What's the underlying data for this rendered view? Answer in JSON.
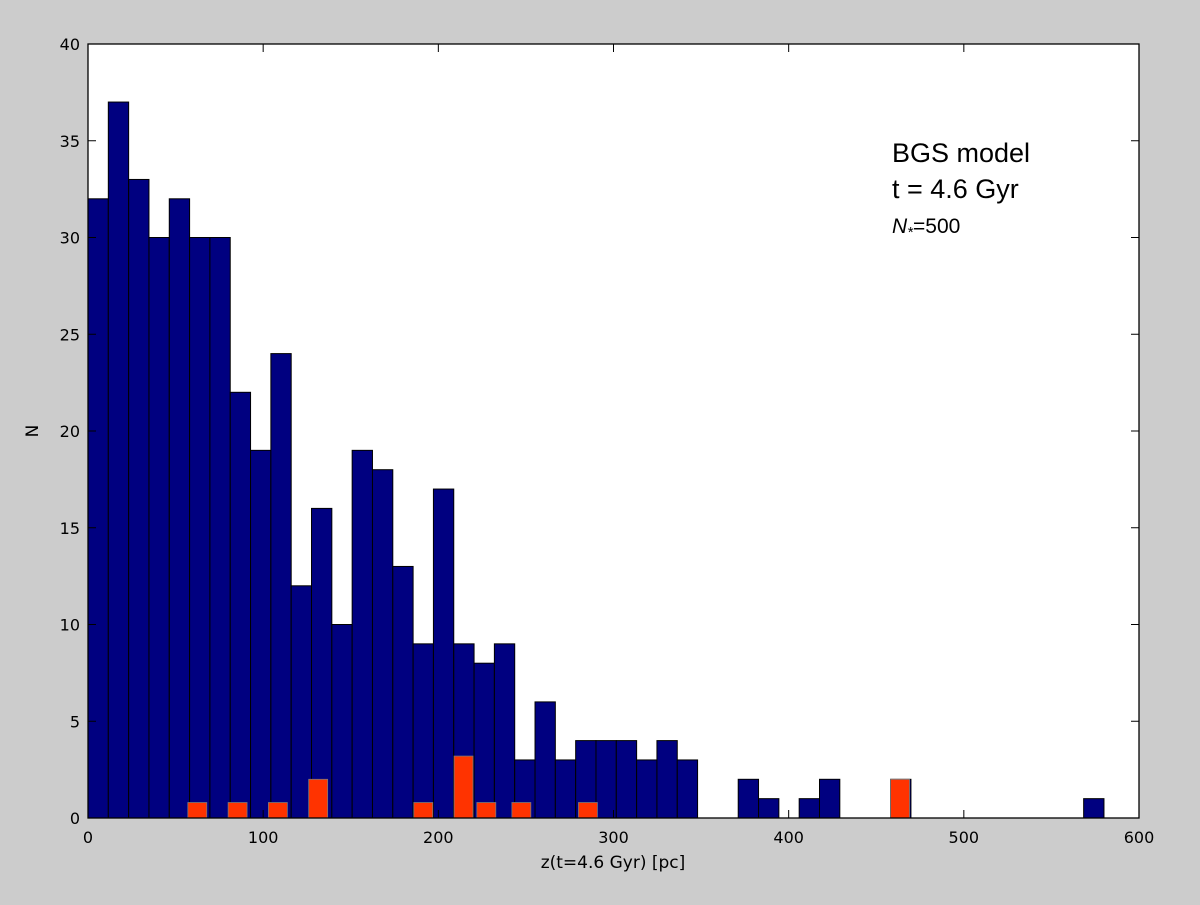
{
  "chart_data": {
    "type": "bar",
    "xlabel": "z(t=4.6 Gyr) [pc]",
    "ylabel": "N",
    "xlim": [
      0,
      600
    ],
    "ylim": [
      0,
      40
    ],
    "xticks": [
      "0",
      "100",
      "200",
      "300",
      "400",
      "500",
      "600"
    ],
    "yticks": [
      "0",
      "5",
      "10",
      "15",
      "20",
      "25",
      "30",
      "35",
      "40"
    ],
    "bin_width": 11.6,
    "grid": false,
    "annotations": {
      "line1": "BGS model",
      "line2": "t = 4.6 Gyr",
      "line3_symbol": "N",
      "line3_sub": "*",
      "line3_value": "=500"
    },
    "series": [
      {
        "color": "#000080",
        "bin_left": [
          0,
          11.6,
          23.2,
          34.8,
          46.4,
          58.0,
          69.6,
          81.2,
          92.8,
          104.4,
          116.0,
          127.6,
          139.2,
          150.8,
          162.4,
          174.0,
          185.6,
          197.2,
          208.8,
          220.4,
          232.0,
          243.6,
          255.2,
          266.8,
          278.4,
          290.0,
          301.6,
          313.2,
          324.8,
          336.4,
          371.2,
          382.8,
          406.0,
          417.6,
          458.2,
          568.4
        ],
        "values": [
          32,
          37,
          33,
          30,
          32,
          30,
          30,
          22,
          19,
          24,
          12,
          16,
          10,
          19,
          18,
          13,
          9,
          17,
          9,
          8,
          9,
          3,
          6,
          3,
          4,
          4,
          4,
          3,
          4,
          3,
          2,
          1,
          1,
          2,
          2,
          1
        ]
      },
      {
        "color": "#ff3300",
        "bin_left": [
          57,
          80,
          103,
          126,
          186,
          209,
          222,
          242,
          280,
          458.2
        ],
        "bin_width": 10.8,
        "values": [
          0.8,
          0.8,
          0.8,
          2.0,
          0.8,
          3.2,
          0.8,
          0.8,
          0.8,
          2.0
        ]
      }
    ]
  }
}
